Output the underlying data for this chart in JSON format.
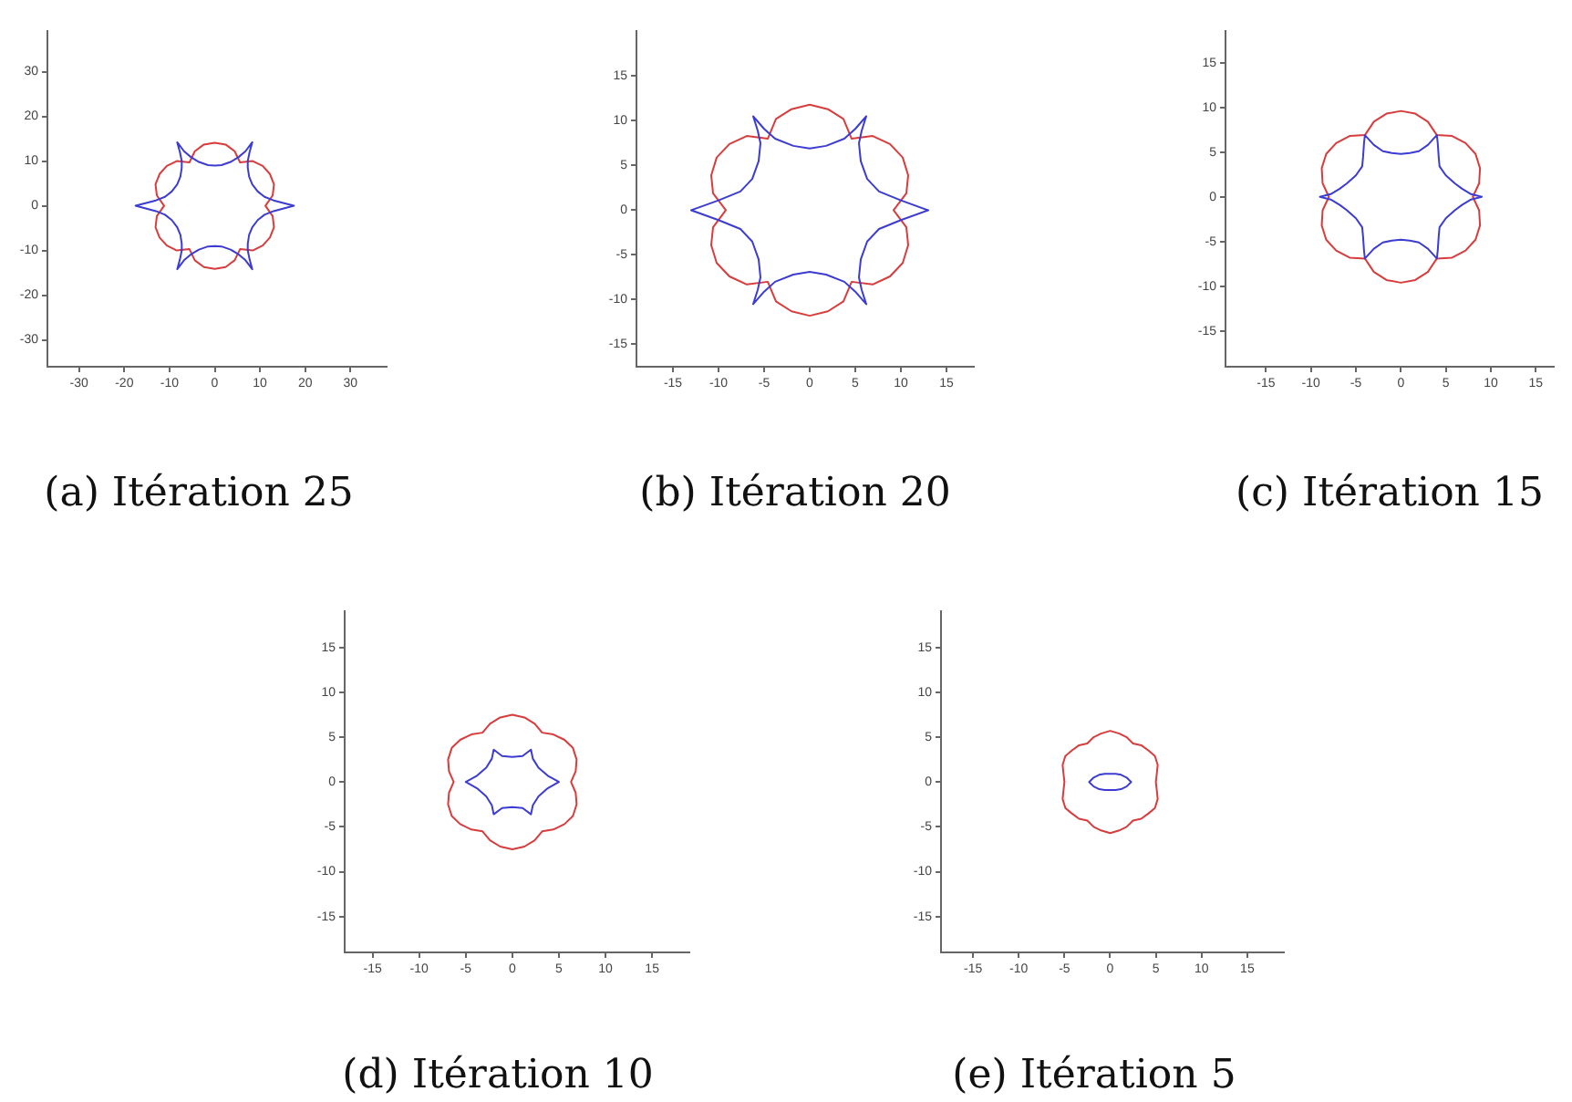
{
  "chart_data": [
    {
      "type": "line",
      "title": "(a) Itération 25",
      "xlim": [
        -37,
        38
      ],
      "ylim": [
        -36,
        39
      ],
      "xticks": [
        -30,
        -20,
        -10,
        0,
        10,
        20,
        30
      ],
      "yticks": [
        -30,
        -20,
        -10,
        0,
        10,
        20,
        30
      ]
    },
    {
      "type": "line",
      "title": "(b) Itération 20",
      "xlim": [
        -19,
        18
      ],
      "ylim": [
        -17.5,
        20
      ],
      "xticks": [
        -15,
        -10,
        -5,
        0,
        5,
        10,
        15
      ],
      "yticks": [
        -15,
        -10,
        -5,
        0,
        5,
        10,
        15
      ]
    },
    {
      "type": "line",
      "title": "(c) Itération 15",
      "xlim": [
        -19.5,
        17
      ],
      "ylim": [
        -19,
        18.5
      ],
      "xticks": [
        -15,
        -10,
        -5,
        0,
        5,
        10,
        15
      ],
      "yticks": [
        -15,
        -10,
        -5,
        0,
        5,
        10,
        15
      ]
    },
    {
      "type": "line",
      "title": "(d) Itération 10",
      "xlim": [
        -18,
        19
      ],
      "ylim": [
        -19,
        19
      ],
      "xticks": [
        -15,
        -10,
        -5,
        0,
        5,
        10,
        15
      ],
      "yticks": [
        -15,
        -10,
        -5,
        0,
        5,
        10,
        15
      ]
    },
    {
      "type": "line",
      "title": "(e) Itération 5",
      "xlim": [
        -18.5,
        19
      ],
      "ylim": [
        -19,
        19
      ],
      "xticks": [
        -15,
        -10,
        -5,
        0,
        5,
        10,
        15
      ],
      "yticks": [
        -15,
        -10,
        -5,
        0,
        5,
        10,
        15
      ]
    }
  ]
}
